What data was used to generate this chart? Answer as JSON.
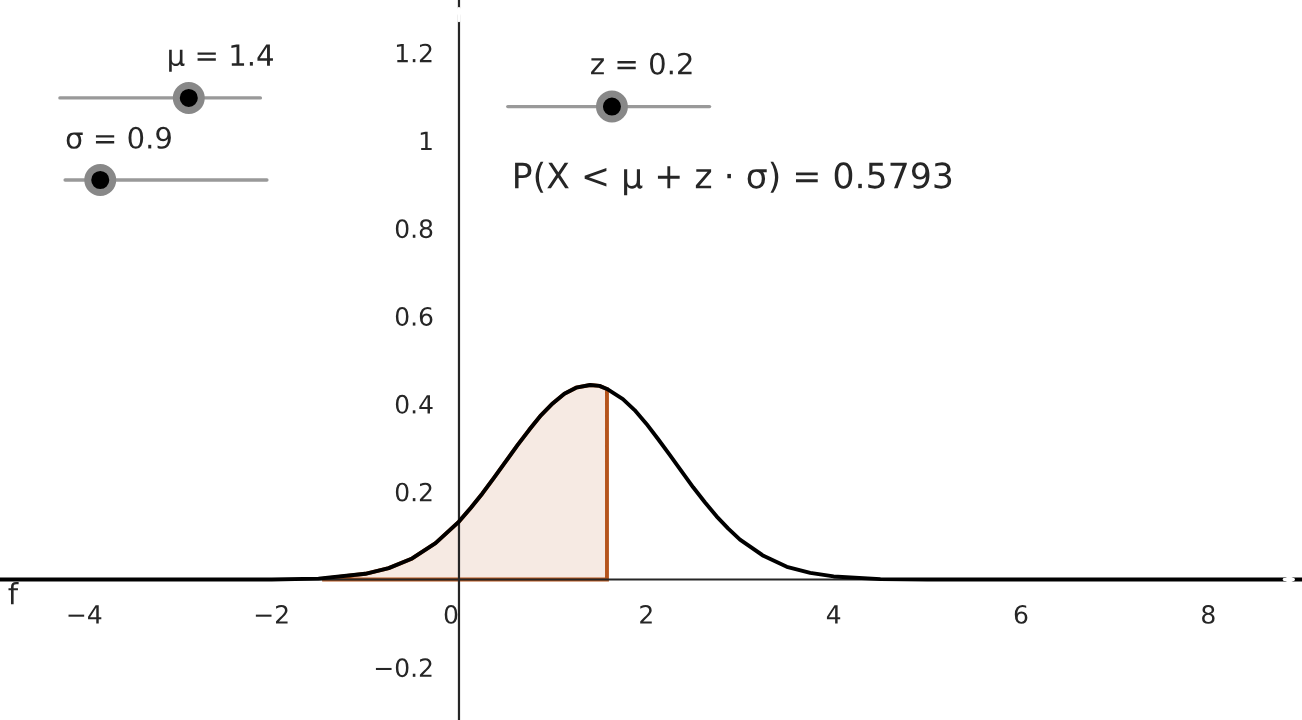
{
  "chart_data": {
    "type": "line",
    "annotations": [
      "μ = 1.4",
      "σ = 0.9",
      "z = 0.2",
      "P(X < μ + z · σ) = 0.5793",
      "f"
    ],
    "xlim": [
      -4.9,
      9.0
    ],
    "ylim": [
      -0.32,
      1.32
    ],
    "xticks": [
      -4,
      -2,
      0,
      2,
      4,
      6,
      8
    ],
    "yticks": [
      -0.2,
      0.2,
      0.4,
      0.6,
      0.8,
      1,
      1.2
    ],
    "grid": false,
    "legend": false,
    "series": [
      {
        "type": "area",
        "color": "#b5541c",
        "x": [
          -1.44,
          -1,
          -0.75,
          -0.5,
          -0.25,
          0,
          0.125,
          0.25,
          0.375,
          0.5,
          0.625,
          0.75,
          0.875,
          1,
          1.125,
          1.25,
          1.4,
          1.5,
          1.58
        ],
        "values": [
          0.002,
          0.013,
          0.026,
          0.048,
          0.083,
          0.132,
          0.163,
          0.196,
          0.232,
          0.269,
          0.306,
          0.341,
          0.374,
          0.401,
          0.423,
          0.437,
          0.443,
          0.441,
          0.434
        ]
      },
      {
        "color": "#000000",
        "x": [
          -4.9,
          -2,
          -1.5,
          -1,
          -0.75,
          -0.5,
          -0.25,
          0,
          0.125,
          0.25,
          0.375,
          0.5,
          0.625,
          0.75,
          0.875,
          1,
          1.125,
          1.25,
          1.4,
          1.5,
          1.58,
          1.75,
          1.875,
          2,
          2.125,
          2.25,
          2.375,
          2.5,
          2.625,
          2.75,
          2.875,
          3,
          3.25,
          3.5,
          3.75,
          4,
          4.5,
          5,
          9
        ],
        "values": [
          0,
          0,
          0.002,
          0.013,
          0.026,
          0.048,
          0.083,
          0.132,
          0.163,
          0.196,
          0.232,
          0.269,
          0.306,
          0.341,
          0.374,
          0.401,
          0.423,
          0.437,
          0.443,
          0.441,
          0.434,
          0.411,
          0.386,
          0.355,
          0.32,
          0.284,
          0.247,
          0.21,
          0.176,
          0.144,
          0.116,
          0.091,
          0.054,
          0.029,
          0.015,
          0.007,
          0.001,
          0,
          0
        ]
      }
    ]
  }
}
